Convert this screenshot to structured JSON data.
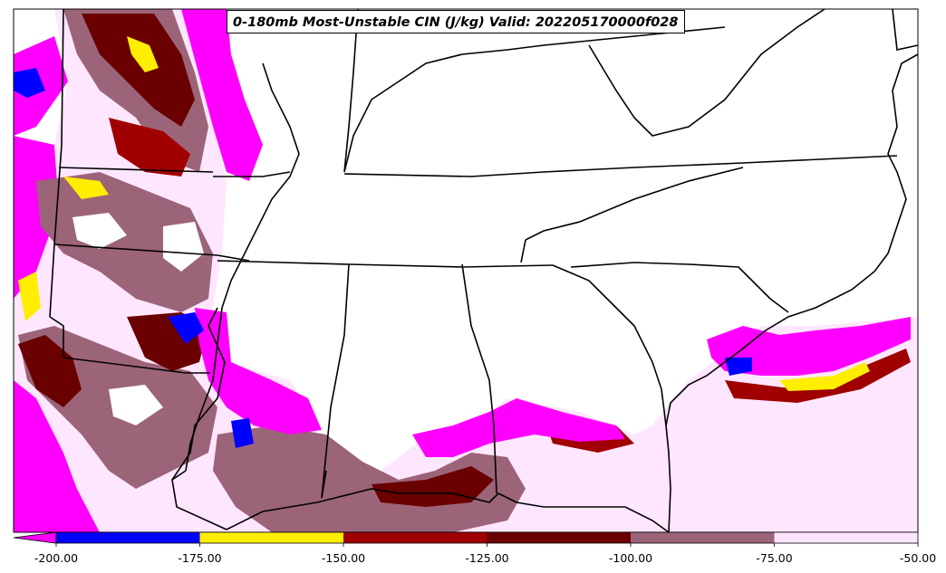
{
  "title": "0-180mb Most-Unstable CIN (J/kg) Valid: 202205170000f028",
  "colorbar": {
    "ticks": [
      "-200.00",
      "-175.00",
      "-150.00",
      "-125.00",
      "-100.00",
      "-75.00",
      "-50.00"
    ],
    "bins": [
      {
        "from": -200,
        "to": -175,
        "color": "#0000ff"
      },
      {
        "from": -175,
        "to": -150,
        "color": "#ffee00"
      },
      {
        "from": -150,
        "to": -125,
        "color": "#a00000"
      },
      {
        "from": -125,
        "to": -100,
        "color": "#6a0000"
      },
      {
        "from": -100,
        "to": -75,
        "color": "#9c6478"
      },
      {
        "from": -75,
        "to": -50,
        "color": "#ffe6ff"
      }
    ],
    "under_color": "#ff00ff"
  },
  "colors": {
    "ocean": "#ffffff",
    "magenta": "#ff00ff",
    "blue": "#0000ff",
    "yellow": "#ffee00",
    "red": "#a00000",
    "darkred": "#6a0000",
    "mauve": "#9c6478",
    "pink": "#ffe6ff",
    "border": "#000000"
  }
}
